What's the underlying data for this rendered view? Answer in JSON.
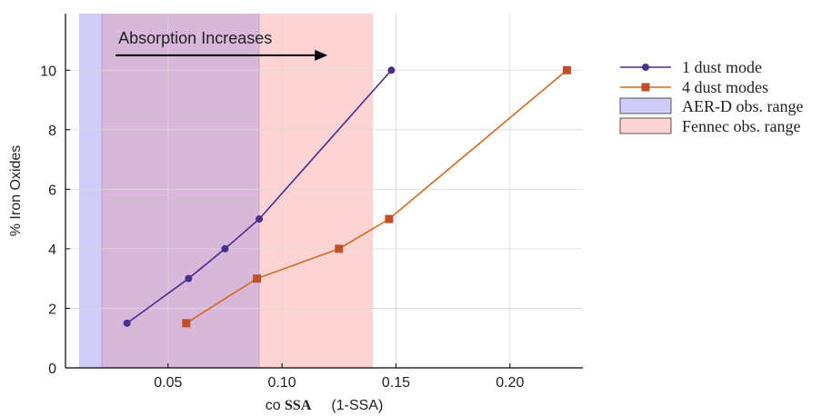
{
  "chart_data": {
    "type": "line",
    "ylabel": "% Iron Oxides",
    "xlabel": {
      "prefix": "co",
      "bold": "SSA",
      "suffix": "(1-SSA)"
    },
    "xlim": [
      0.005,
      0.232
    ],
    "ylim": [
      0,
      11.9
    ],
    "x_ticks": [
      0.05,
      0.1,
      0.15,
      0.2
    ],
    "x_tick_labels": [
      "0.05",
      "0.10",
      "0.15",
      "0.20"
    ],
    "y_ticks": [
      0,
      2,
      4,
      6,
      8,
      10
    ],
    "y_tick_labels": [
      "0",
      "2",
      "4",
      "6",
      "8",
      "10"
    ],
    "grid": true,
    "legend_position": "outside-right",
    "series": [
      {
        "name": "1 dust mode",
        "color": "#4b2f8a",
        "marker": "circle",
        "x": [
          0.032,
          0.059,
          0.075,
          0.09,
          0.148
        ],
        "y": [
          1.5,
          3,
          4,
          5,
          10
        ]
      },
      {
        "name": "4 dust modes",
        "color": "#d2691e",
        "marker_color": "#c0502a",
        "marker": "square",
        "x": [
          0.058,
          0.089,
          0.125,
          0.147,
          0.225
        ],
        "y": [
          1.5,
          3,
          4,
          5,
          10
        ]
      }
    ],
    "ranges": [
      {
        "name": "AER-D obs. range",
        "x": [
          0.011,
          0.09
        ],
        "color": "#cfcdf7"
      },
      {
        "name": "Fennec obs. range",
        "x": [
          0.021,
          0.14
        ],
        "color": "#fdd3d3"
      }
    ],
    "overlap_color": "#d8b7da",
    "annotation": {
      "text": "Absorption Increases",
      "arrow_from": [
        0.027,
        10.5
      ],
      "arrow_to": [
        0.12,
        10.5
      ],
      "text_at": [
        0.027,
        10.9
      ]
    }
  }
}
